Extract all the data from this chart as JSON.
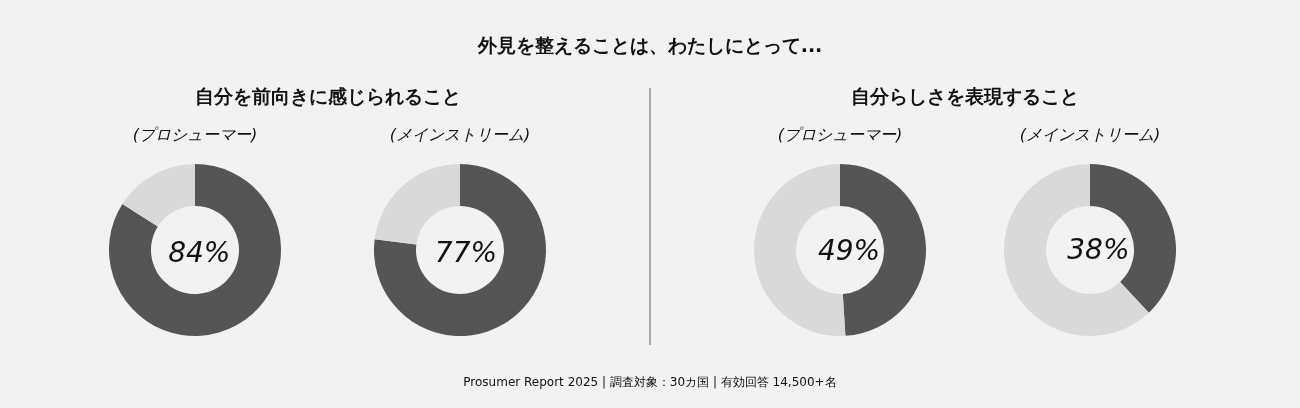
{
  "chart_data": [
    {
      "type": "other",
      "title": "外見を整えることは、わたしにとって...",
      "annotations": [
        "Prosumer Report 2025 | 調査対象：30カ国 | 有効回答 14,500+名"
      ]
    },
    {
      "type": "donut",
      "title": "自分を前向きに感じられること",
      "subtitle": "(プロシューマー)",
      "categories": [
        null,
        null
      ],
      "values": [
        84,
        16
      ],
      "colors": [
        "#555555",
        "#d9d9d9"
      ],
      "value_labels": [
        "84%",
        null
      ]
    },
    {
      "type": "donut",
      "subtitle": "(メインストリーム)",
      "categories": [
        null,
        null
      ],
      "values": [
        77,
        23
      ],
      "colors": [
        "#555555",
        "#d9d9d9"
      ],
      "value_labels": [
        "77%",
        null
      ]
    },
    {
      "type": "donut",
      "title": "自分らしさを表現すること",
      "subtitle": "(プロシューマー)",
      "categories": [
        null,
        null
      ],
      "values": [
        49,
        51
      ],
      "colors": [
        "#555555",
        "#d9d9d9"
      ],
      "value_labels": [
        "49%",
        null
      ]
    },
    {
      "type": "donut",
      "subtitle": "(メインストリーム)",
      "categories": [
        null,
        null
      ],
      "values": [
        38,
        62
      ],
      "colors": [
        "#555555",
        "#d9d9d9"
      ],
      "value_labels": [
        "38%",
        null
      ]
    }
  ]
}
